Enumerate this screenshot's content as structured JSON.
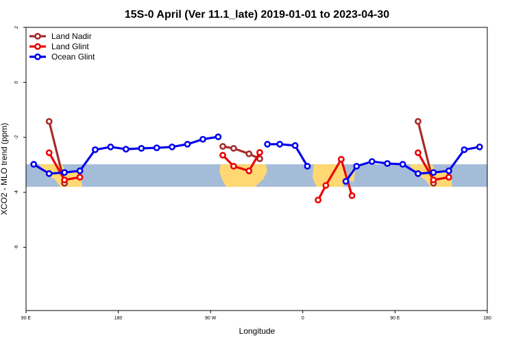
{
  "chart_data": {
    "type": "line",
    "title": "15S-0 April (Ver 11.1_late)   2019-01-01 to 2023-04-30",
    "xlabel": "Longitude",
    "ylabel": "XCO2 - MLO trend (ppm)",
    "xlim": [
      0,
      300
    ],
    "ylim": [
      -8.3,
      2
    ],
    "x_ticks": [
      {
        "value": 0,
        "label": "90 E"
      },
      {
        "value": 60,
        "label": "180"
      },
      {
        "value": 120,
        "label": "90 W"
      },
      {
        "value": 180,
        "label": "0"
      },
      {
        "value": 240,
        "label": "90 E"
      },
      {
        "value": 300,
        "label": "180"
      }
    ],
    "y_ticks": [
      {
        "value": 2,
        "label": "2"
      },
      {
        "value": 0,
        "label": "0"
      },
      {
        "value": -2,
        "label": "-2"
      },
      {
        "value": -4,
        "label": "-4"
      },
      {
        "value": -6,
        "label": "-6"
      }
    ],
    "band": {
      "y0": -3.8,
      "y1": -2.98,
      "color": "#a5bcd9"
    },
    "land_color": "#ffd873",
    "legend_position": "top-left",
    "series": [
      {
        "name": "Land Nadir",
        "color": "#a52a2a",
        "segments": [
          [
            [
              15,
              -1.42
            ],
            [
              25,
              -3.67
            ]
          ],
          [
            [
              128,
              -2.33
            ],
            [
              135,
              -2.4
            ],
            [
              145,
              -2.6
            ],
            [
              152,
              -2.78
            ]
          ],
          [
            [
              255,
              -1.42
            ],
            [
              265,
              -3.67
            ]
          ]
        ]
      },
      {
        "name": "Land Glint",
        "color": "#ee0000",
        "segments": [
          [
            [
              15,
              -2.56
            ],
            [
              25,
              -3.55
            ],
            [
              35,
              -3.45
            ]
          ],
          [
            [
              128,
              -2.65
            ],
            [
              135,
              -3.05
            ],
            [
              145,
              -3.22
            ],
            [
              152,
              -2.55
            ]
          ],
          [
            [
              190,
              -4.28
            ],
            [
              195,
              -3.75
            ],
            [
              205,
              -2.8
            ],
            [
              212,
              -4.12
            ]
          ],
          [
            [
              255,
              -2.56
            ],
            [
              265,
              -3.55
            ],
            [
              275,
              -3.45
            ]
          ]
        ]
      },
      {
        "name": "Ocean Glint",
        "color": "#0000ee",
        "segments": [
          [
            [
              5,
              -2.98
            ],
            [
              15,
              -3.32
            ],
            [
              25,
              -3.28
            ],
            [
              35,
              -3.22
            ],
            [
              45,
              -2.45
            ],
            [
              55,
              -2.35
            ],
            [
              65,
              -2.43
            ],
            [
              75,
              -2.4
            ],
            [
              85,
              -2.38
            ],
            [
              95,
              -2.35
            ],
            [
              105,
              -2.25
            ],
            [
              115,
              -2.07
            ],
            [
              125,
              -1.98
            ]
          ],
          [
            [
              157,
              -2.25
            ],
            [
              165,
              -2.25
            ],
            [
              175,
              -2.3
            ],
            [
              183,
              -3.05
            ]
          ],
          [
            [
              208,
              -3.6
            ],
            [
              215,
              -3.05
            ],
            [
              225,
              -2.88
            ],
            [
              235,
              -2.95
            ],
            [
              245,
              -2.98
            ],
            [
              255,
              -3.32
            ],
            [
              265,
              -3.28
            ],
            [
              275,
              -3.22
            ],
            [
              285,
              -2.45
            ],
            [
              295,
              -2.35
            ]
          ]
        ]
      }
    ]
  }
}
